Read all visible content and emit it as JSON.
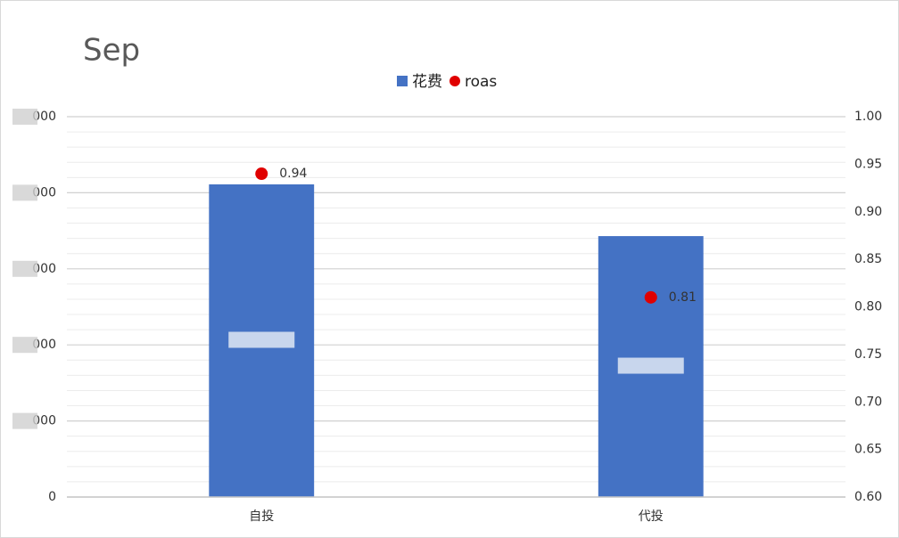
{
  "chart_data": {
    "type": "bar",
    "title": "Sep",
    "categories": [
      "自投",
      "代投"
    ],
    "series": [
      {
        "name": "花费",
        "type": "bar",
        "color": "#4472c4",
        "values": [
          4.11,
          3.43
        ]
      },
      {
        "name": "roas",
        "type": "scatter",
        "axis": "y2",
        "color": "#e00000",
        "values": [
          0.94,
          0.81
        ],
        "value_labels": [
          "0.94",
          "0.81"
        ]
      }
    ],
    "ylim": [
      0,
      5
    ],
    "yticks": [
      0,
      {
        "value": 1,
        "label": "000"
      },
      {
        "value": 2,
        "label": "000"
      },
      {
        "value": 3,
        "label": "000"
      },
      {
        "value": 4,
        "label": "000"
      },
      {
        "value": 5,
        "label": "000"
      }
    ],
    "y2lim": [
      0.6,
      1.0
    ],
    "y2ticks": [
      {
        "value": 0.6,
        "label": "0.60"
      },
      {
        "value": 0.65,
        "label": "0.65"
      },
      {
        "value": 0.7,
        "label": "0.70"
      },
      {
        "value": 0.75,
        "label": "0.75"
      },
      {
        "value": 0.8,
        "label": "0.80"
      },
      {
        "value": 0.85,
        "label": "0.85"
      },
      {
        "value": 0.9,
        "label": "0.90"
      },
      {
        "value": 0.95,
        "label": "0.95"
      },
      {
        "value": 1.0,
        "label": "1.00"
      }
    ],
    "grid": true,
    "legend": "top"
  }
}
